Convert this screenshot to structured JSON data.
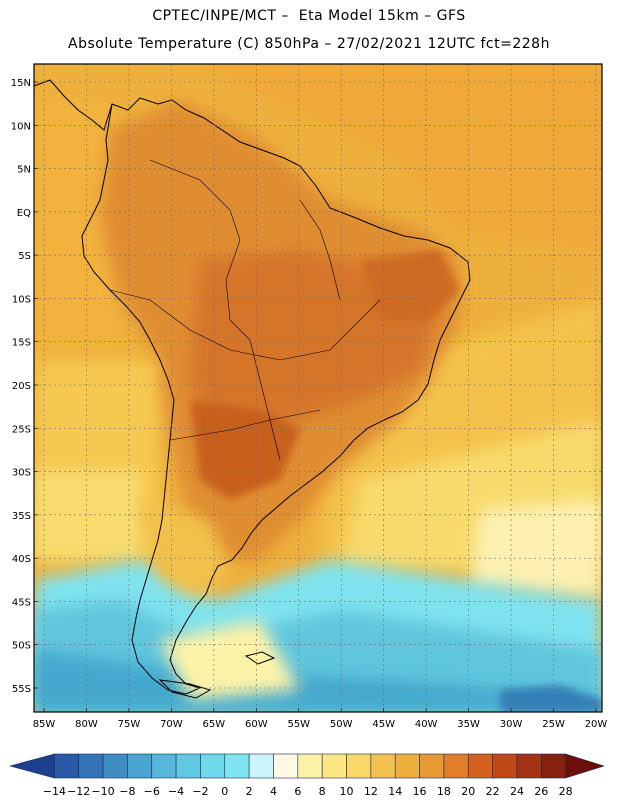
{
  "header": {
    "line1": "CPTEC/INPE/MCT –  Eta Model 15km – GFS",
    "line2": "Absolute Temperature (C) 850hPa – 27/02/2021 12UTC fct=228h"
  },
  "map": {
    "lat_labels": [
      "15N",
      "10N",
      "5N",
      "EQ",
      "5S",
      "10S",
      "15S",
      "20S",
      "25S",
      "30S",
      "35S",
      "40S",
      "45S",
      "50S",
      "55S"
    ],
    "lon_labels": [
      "85W",
      "80W",
      "75W",
      "70W",
      "65W",
      "60W",
      "55W",
      "50W",
      "45W",
      "40W",
      "35W",
      "30W",
      "25W",
      "20W"
    ],
    "field_colors": {
      "hot_inland": "#d8782c",
      "warm": "#e9a035",
      "mild": "#f2c04a",
      "cool": "#f8e27a",
      "cold": "#7ad8e6",
      "very_cold": "#3fb3d3"
    }
  },
  "colorbar": {
    "labels": [
      "-14",
      "-12",
      "-10",
      "-8",
      "-6",
      "-4",
      "-2",
      "0",
      "2",
      "4",
      "6",
      "8",
      "10",
      "12",
      "14",
      "16",
      "18",
      "20",
      "22",
      "24",
      "26",
      "28"
    ],
    "colors": [
      "#1e3f8f",
      "#2a5aa6",
      "#3474b6",
      "#3e8ec4",
      "#49a4cf",
      "#55b8da",
      "#62c9e2",
      "#6fd8ea",
      "#7fe6f0",
      "#cbf5fb",
      "#fff8e4",
      "#fdf3a8",
      "#fde783",
      "#f9d867",
      "#f3c24e",
      "#eeb03c",
      "#e89a32",
      "#e07f28",
      "#d5611f",
      "#c34818",
      "#a43214",
      "#882010",
      "#6b0f0b"
    ]
  }
}
